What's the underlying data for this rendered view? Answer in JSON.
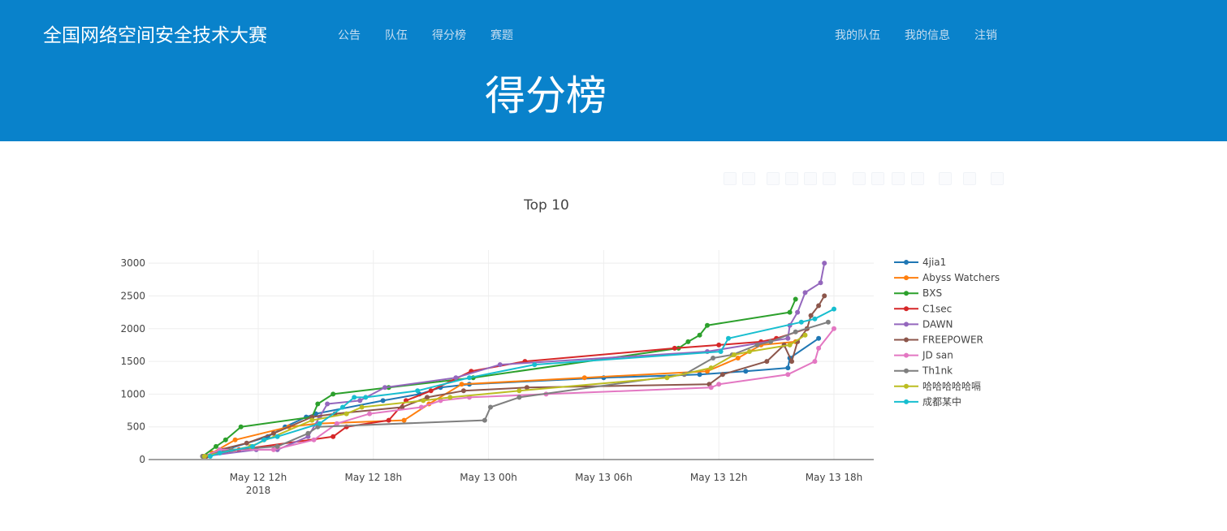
{
  "header": {
    "brand": "全国网络空间安全技术大赛",
    "nav_left": [
      "公告",
      "队伍",
      "得分榜",
      "赛题"
    ],
    "nav_right": [
      "我的队伍",
      "我的信息",
      "注销"
    ],
    "page_title": "得分榜"
  },
  "colors": {
    "header_bg": "#0982cb",
    "nav_text": "#c8def0"
  },
  "modebar_icons": [
    "camera-icon",
    "zoom-icon",
    "pan-icon",
    "box-select-icon",
    "lasso-icon",
    "zoom-in-icon",
    "zoom-out-icon",
    "autoscale-icon",
    "reset-axes-icon",
    "spike-lines-icon",
    "hover-closest-icon",
    "hover-compare-icon",
    "plotly-logo-icon"
  ],
  "chart_data": {
    "type": "line",
    "title": "Top 10",
    "x_unit": "hours since May 12 00h, 2018",
    "xticks": [
      {
        "x": 12,
        "label": "May 12 12h",
        "sub": "2018"
      },
      {
        "x": 18,
        "label": "May 12 18h",
        "sub": ""
      },
      {
        "x": 24,
        "label": "May 13 00h",
        "sub": ""
      },
      {
        "x": 30,
        "label": "May 13 06h",
        "sub": ""
      },
      {
        "x": 36,
        "label": "May 13 12h",
        "sub": ""
      },
      {
        "x": 42,
        "label": "May 13 18h",
        "sub": ""
      }
    ],
    "xlim": [
      7.2,
      43.5
    ],
    "ylim": [
      0,
      3200
    ],
    "yticks": [
      0,
      500,
      1000,
      1500,
      2000,
      2500,
      3000
    ],
    "legend_position": "right",
    "series": [
      {
        "name": "4jia1",
        "color": "#1f77b4",
        "points": [
          [
            9.2,
            50
          ],
          [
            12.5,
            350
          ],
          [
            13.4,
            500
          ],
          [
            14.5,
            650
          ],
          [
            15.0,
            700
          ],
          [
            18.5,
            900
          ],
          [
            20.4,
            1000
          ],
          [
            21.5,
            1100
          ],
          [
            23.0,
            1150
          ],
          [
            30.0,
            1250
          ],
          [
            35.0,
            1300
          ],
          [
            37.4,
            1350
          ],
          [
            39.6,
            1400
          ],
          [
            39.7,
            1550
          ],
          [
            41.2,
            1850
          ]
        ]
      },
      {
        "name": "Abyss Watchers",
        "color": "#ff7f0e",
        "points": [
          [
            9.6,
            100
          ],
          [
            10.8,
            300
          ],
          [
            13.6,
            500
          ],
          [
            15.1,
            550
          ],
          [
            19.6,
            600
          ],
          [
            20.9,
            850
          ],
          [
            22.6,
            1150
          ],
          [
            29.0,
            1250
          ],
          [
            35.4,
            1350
          ],
          [
            37.0,
            1550
          ],
          [
            38.2,
            1750
          ],
          [
            40.0,
            1800
          ]
        ]
      },
      {
        "name": "BXS",
        "color": "#2ca02c",
        "points": [
          [
            9.1,
            50
          ],
          [
            9.8,
            200
          ],
          [
            10.3,
            300
          ],
          [
            11.1,
            500
          ],
          [
            14.8,
            650
          ],
          [
            15.1,
            850
          ],
          [
            15.9,
            1000
          ],
          [
            18.8,
            1100
          ],
          [
            23.2,
            1250
          ],
          [
            33.9,
            1700
          ],
          [
            34.4,
            1800
          ],
          [
            35.0,
            1900
          ],
          [
            35.4,
            2050
          ],
          [
            39.7,
            2250
          ],
          [
            40.0,
            2450
          ]
        ]
      },
      {
        "name": "C1sec",
        "color": "#d62728",
        "points": [
          [
            9.1,
            50
          ],
          [
            11.0,
            150
          ],
          [
            15.9,
            350
          ],
          [
            16.6,
            500
          ],
          [
            18.8,
            600
          ],
          [
            19.7,
            900
          ],
          [
            21.0,
            1050
          ],
          [
            23.1,
            1350
          ],
          [
            25.9,
            1500
          ],
          [
            33.7,
            1700
          ],
          [
            36.0,
            1750
          ],
          [
            38.2,
            1800
          ],
          [
            39.0,
            1850
          ],
          [
            40.6,
            2000
          ]
        ]
      },
      {
        "name": "DAWN",
        "color": "#9467bd",
        "points": [
          [
            9.2,
            50
          ],
          [
            11.9,
            150
          ],
          [
            13.0,
            150
          ],
          [
            14.6,
            350
          ],
          [
            15.2,
            650
          ],
          [
            15.6,
            850
          ],
          [
            17.3,
            900
          ],
          [
            18.6,
            1100
          ],
          [
            22.3,
            1250
          ],
          [
            24.6,
            1450
          ],
          [
            35.4,
            1650
          ],
          [
            39.6,
            1850
          ],
          [
            39.7,
            2050
          ],
          [
            40.1,
            2250
          ],
          [
            40.5,
            2550
          ],
          [
            41.3,
            2700
          ],
          [
            41.5,
            3000
          ]
        ]
      },
      {
        "name": "FREEPOWER",
        "color": "#8c564b",
        "points": [
          [
            9.3,
            50
          ],
          [
            10.0,
            150
          ],
          [
            11.4,
            250
          ],
          [
            12.8,
            400
          ],
          [
            14.8,
            650
          ],
          [
            16.0,
            700
          ],
          [
            19.5,
            800
          ],
          [
            20.8,
            950
          ],
          [
            22.7,
            1050
          ],
          [
            26.0,
            1100
          ],
          [
            35.5,
            1150
          ],
          [
            36.2,
            1300
          ],
          [
            38.5,
            1500
          ],
          [
            39.4,
            1750
          ],
          [
            39.8,
            1500
          ],
          [
            40.1,
            1800
          ],
          [
            40.6,
            2000
          ],
          [
            40.8,
            2200
          ],
          [
            41.2,
            2350
          ],
          [
            41.5,
            2500
          ]
        ]
      },
      {
        "name": "JD san",
        "color": "#e377c2",
        "points": [
          [
            9.2,
            50
          ],
          [
            10.0,
            150
          ],
          [
            12.8,
            150
          ],
          [
            14.9,
            300
          ],
          [
            16.1,
            550
          ],
          [
            17.8,
            700
          ],
          [
            20.5,
            800
          ],
          [
            21.5,
            900
          ],
          [
            23.0,
            950
          ],
          [
            27.0,
            1000
          ],
          [
            35.6,
            1100
          ],
          [
            36.0,
            1150
          ],
          [
            39.6,
            1300
          ],
          [
            41.0,
            1500
          ],
          [
            41.2,
            1700
          ],
          [
            42.0,
            2000
          ]
        ]
      },
      {
        "name": "Th1nk",
        "color": "#7f7f7f",
        "points": [
          [
            9.1,
            50
          ],
          [
            10.6,
            150
          ],
          [
            13.0,
            200
          ],
          [
            14.6,
            400
          ],
          [
            15.1,
            500
          ],
          [
            23.8,
            600
          ],
          [
            24.1,
            800
          ],
          [
            25.6,
            950
          ],
          [
            34.2,
            1300
          ],
          [
            35.7,
            1550
          ],
          [
            36.7,
            1600
          ],
          [
            38.0,
            1750
          ],
          [
            38.7,
            1800
          ],
          [
            40.0,
            1950
          ],
          [
            41.7,
            2100
          ]
        ]
      },
      {
        "name": "哈哈哈哈哈嗝",
        "color": "#bcbd22",
        "points": [
          [
            9.2,
            50
          ],
          [
            11.6,
            200
          ],
          [
            14.8,
            600
          ],
          [
            16.6,
            700
          ],
          [
            17.4,
            800
          ],
          [
            20.6,
            900
          ],
          [
            22.0,
            950
          ],
          [
            25.6,
            1050
          ],
          [
            33.3,
            1250
          ],
          [
            35.6,
            1400
          ],
          [
            36.8,
            1600
          ],
          [
            37.6,
            1650
          ],
          [
            39.7,
            1750
          ],
          [
            40.5,
            1900
          ]
        ]
      },
      {
        "name": "成都某中",
        "color": "#17becf",
        "points": [
          [
            9.5,
            50
          ],
          [
            10.0,
            100
          ],
          [
            11.7,
            200
          ],
          [
            12.3,
            300
          ],
          [
            13.0,
            350
          ],
          [
            15.2,
            550
          ],
          [
            16.4,
            800
          ],
          [
            17.0,
            950
          ],
          [
            17.6,
            950
          ],
          [
            20.3,
            1050
          ],
          [
            23.0,
            1250
          ],
          [
            26.4,
            1450
          ],
          [
            36.1,
            1650
          ],
          [
            36.5,
            1850
          ],
          [
            40.3,
            2100
          ],
          [
            41.0,
            2150
          ],
          [
            42.0,
            2300
          ]
        ]
      }
    ]
  }
}
